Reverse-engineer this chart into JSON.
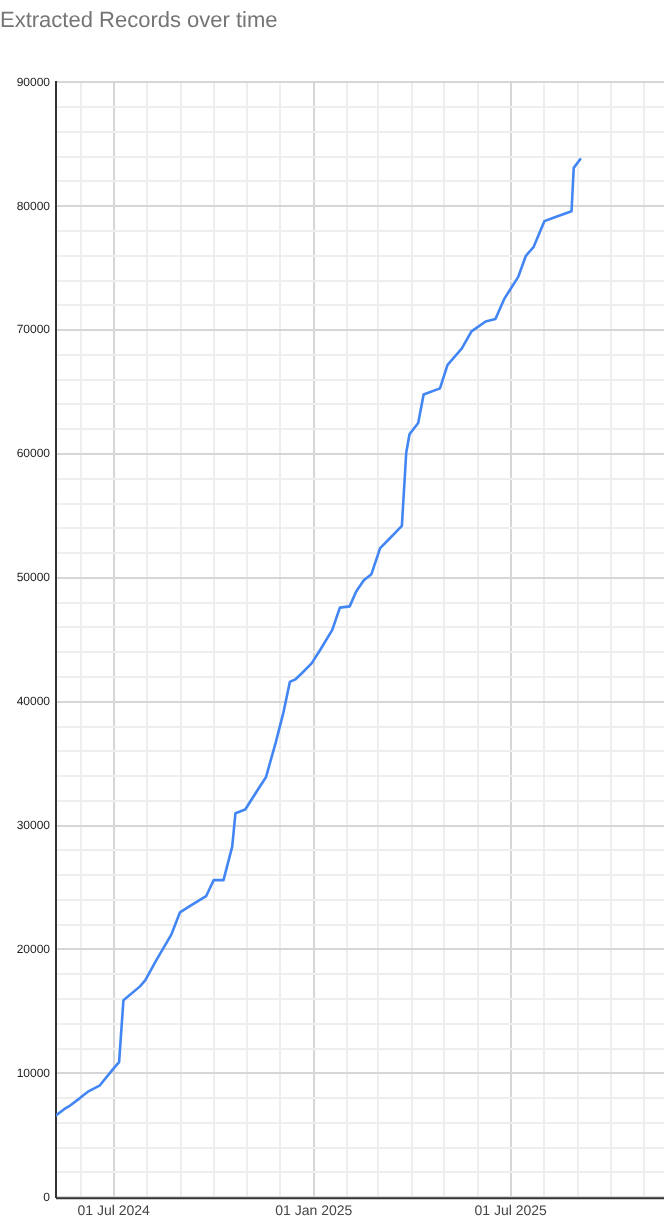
{
  "chart_data": {
    "type": "line",
    "title": "Extracted Records over time",
    "color": "#4285f4",
    "x": [
      "2024-05-09",
      "2024-05-18",
      "2024-05-22",
      "2024-05-31",
      "2024-06-07",
      "2024-06-18",
      "2024-07-01",
      "2024-07-06",
      "2024-07-10",
      "2024-07-25",
      "2024-07-30",
      "2024-08-09",
      "2024-08-23",
      "2024-08-31",
      "2024-09-09",
      "2024-09-24",
      "2024-10-01",
      "2024-10-10",
      "2024-10-18",
      "2024-10-21",
      "2024-10-30",
      "2024-11-12",
      "2024-11-18",
      "2024-11-27",
      "2024-12-04",
      "2024-12-10",
      "2024-12-15",
      "2024-12-21",
      "2024-12-30",
      "2025-01-07",
      "2025-01-18",
      "2025-01-25",
      "2025-02-03",
      "2025-02-09",
      "2025-02-16",
      "2025-02-23",
      "2025-03-03",
      "2025-03-12",
      "2025-03-23",
      "2025-03-27",
      "2025-03-30",
      "2025-04-07",
      "2025-04-12",
      "2025-04-27",
      "2025-05-04",
      "2025-05-17",
      "2025-05-26",
      "2025-06-08",
      "2025-06-17",
      "2025-06-25",
      "2025-06-30",
      "2025-07-08",
      "2025-07-15",
      "2025-07-22",
      "2025-08-01",
      "2025-08-10",
      "2025-08-26",
      "2025-08-28",
      "2025-09-03"
    ],
    "values": [
      6600,
      7200,
      7400,
      8000,
      8500,
      9000,
      10400,
      10900,
      15900,
      17000,
      17500,
      19100,
      21200,
      23000,
      23500,
      24300,
      25600,
      25600,
      28300,
      31000,
      31300,
      33100,
      33900,
      36700,
      39100,
      41600,
      41800,
      42300,
      43100,
      44200,
      45800,
      47600,
      47700,
      48900,
      49800,
      50300,
      52400,
      53200,
      54200,
      60100,
      61600,
      62500,
      64800,
      65300,
      67200,
      68500,
      69900,
      70700,
      70900,
      72500,
      73200,
      74300,
      76000,
      76700,
      78800,
      79100,
      79600,
      83100,
      83800
    ],
    "xlim": [
      "2024-05-09",
      "2025-11-19"
    ],
    "xticks": [
      {
        "value": "2024-06-01",
        "label": null
      },
      {
        "value": "2024-07-01",
        "label": "01 Jul 2024"
      },
      {
        "value": "2024-08-01",
        "label": null
      },
      {
        "value": "2024-09-01",
        "label": null
      },
      {
        "value": "2024-10-01",
        "label": null
      },
      {
        "value": "2024-11-01",
        "label": null
      },
      {
        "value": "2024-12-01",
        "label": null
      },
      {
        "value": "2025-01-01",
        "label": "01 Jan 2025"
      },
      {
        "value": "2025-02-01",
        "label": null
      },
      {
        "value": "2025-03-01",
        "label": null
      },
      {
        "value": "2025-04-01",
        "label": null
      },
      {
        "value": "2025-05-01",
        "label": null
      },
      {
        "value": "2025-06-01",
        "label": null
      },
      {
        "value": "2025-07-01",
        "label": "01 Jul 2025"
      },
      {
        "value": "2025-08-01",
        "label": null
      },
      {
        "value": "2025-09-01",
        "label": null
      },
      {
        "value": "2025-10-01",
        "label": null
      },
      {
        "value": "2025-11-01",
        "label": null
      }
    ],
    "ylim": [
      0,
      90000
    ],
    "yticks": [
      0,
      {
        "value": 2000,
        "label": null
      },
      {
        "value": 4000,
        "label": null
      },
      {
        "value": 6000,
        "label": null
      },
      {
        "value": 8000,
        "label": null
      },
      10000,
      {
        "value": 12000,
        "label": null
      },
      {
        "value": 14000,
        "label": null
      },
      {
        "value": 16000,
        "label": null
      },
      {
        "value": 18000,
        "label": null
      },
      20000,
      {
        "value": 22000,
        "label": null
      },
      {
        "value": 24000,
        "label": null
      },
      {
        "value": 26000,
        "label": null
      },
      {
        "value": 28000,
        "label": null
      },
      30000,
      {
        "value": 32000,
        "label": null
      },
      {
        "value": 34000,
        "label": null
      },
      {
        "value": 36000,
        "label": null
      },
      {
        "value": 38000,
        "label": null
      },
      40000,
      {
        "value": 42000,
        "label": null
      },
      {
        "value": 44000,
        "label": null
      },
      {
        "value": 46000,
        "label": null
      },
      {
        "value": 48000,
        "label": null
      },
      50000,
      {
        "value": 52000,
        "label": null
      },
      {
        "value": 54000,
        "label": null
      },
      {
        "value": 56000,
        "label": null
      },
      {
        "value": 58000,
        "label": null
      },
      60000,
      {
        "value": 62000,
        "label": null
      },
      {
        "value": 64000,
        "label": null
      },
      {
        "value": 66000,
        "label": null
      },
      {
        "value": 68000,
        "label": null
      },
      70000,
      {
        "value": 72000,
        "label": null
      },
      {
        "value": 74000,
        "label": null
      },
      {
        "value": 76000,
        "label": null
      },
      {
        "value": 78000,
        "label": null
      },
      80000,
      {
        "value": 82000,
        "label": null
      },
      {
        "value": 84000,
        "label": null
      },
      {
        "value": 86000,
        "label": null
      },
      {
        "value": 88000,
        "label": null
      },
      90000
    ],
    "grid": true,
    "legend": false,
    "marker": "none",
    "line_style": "solid"
  }
}
